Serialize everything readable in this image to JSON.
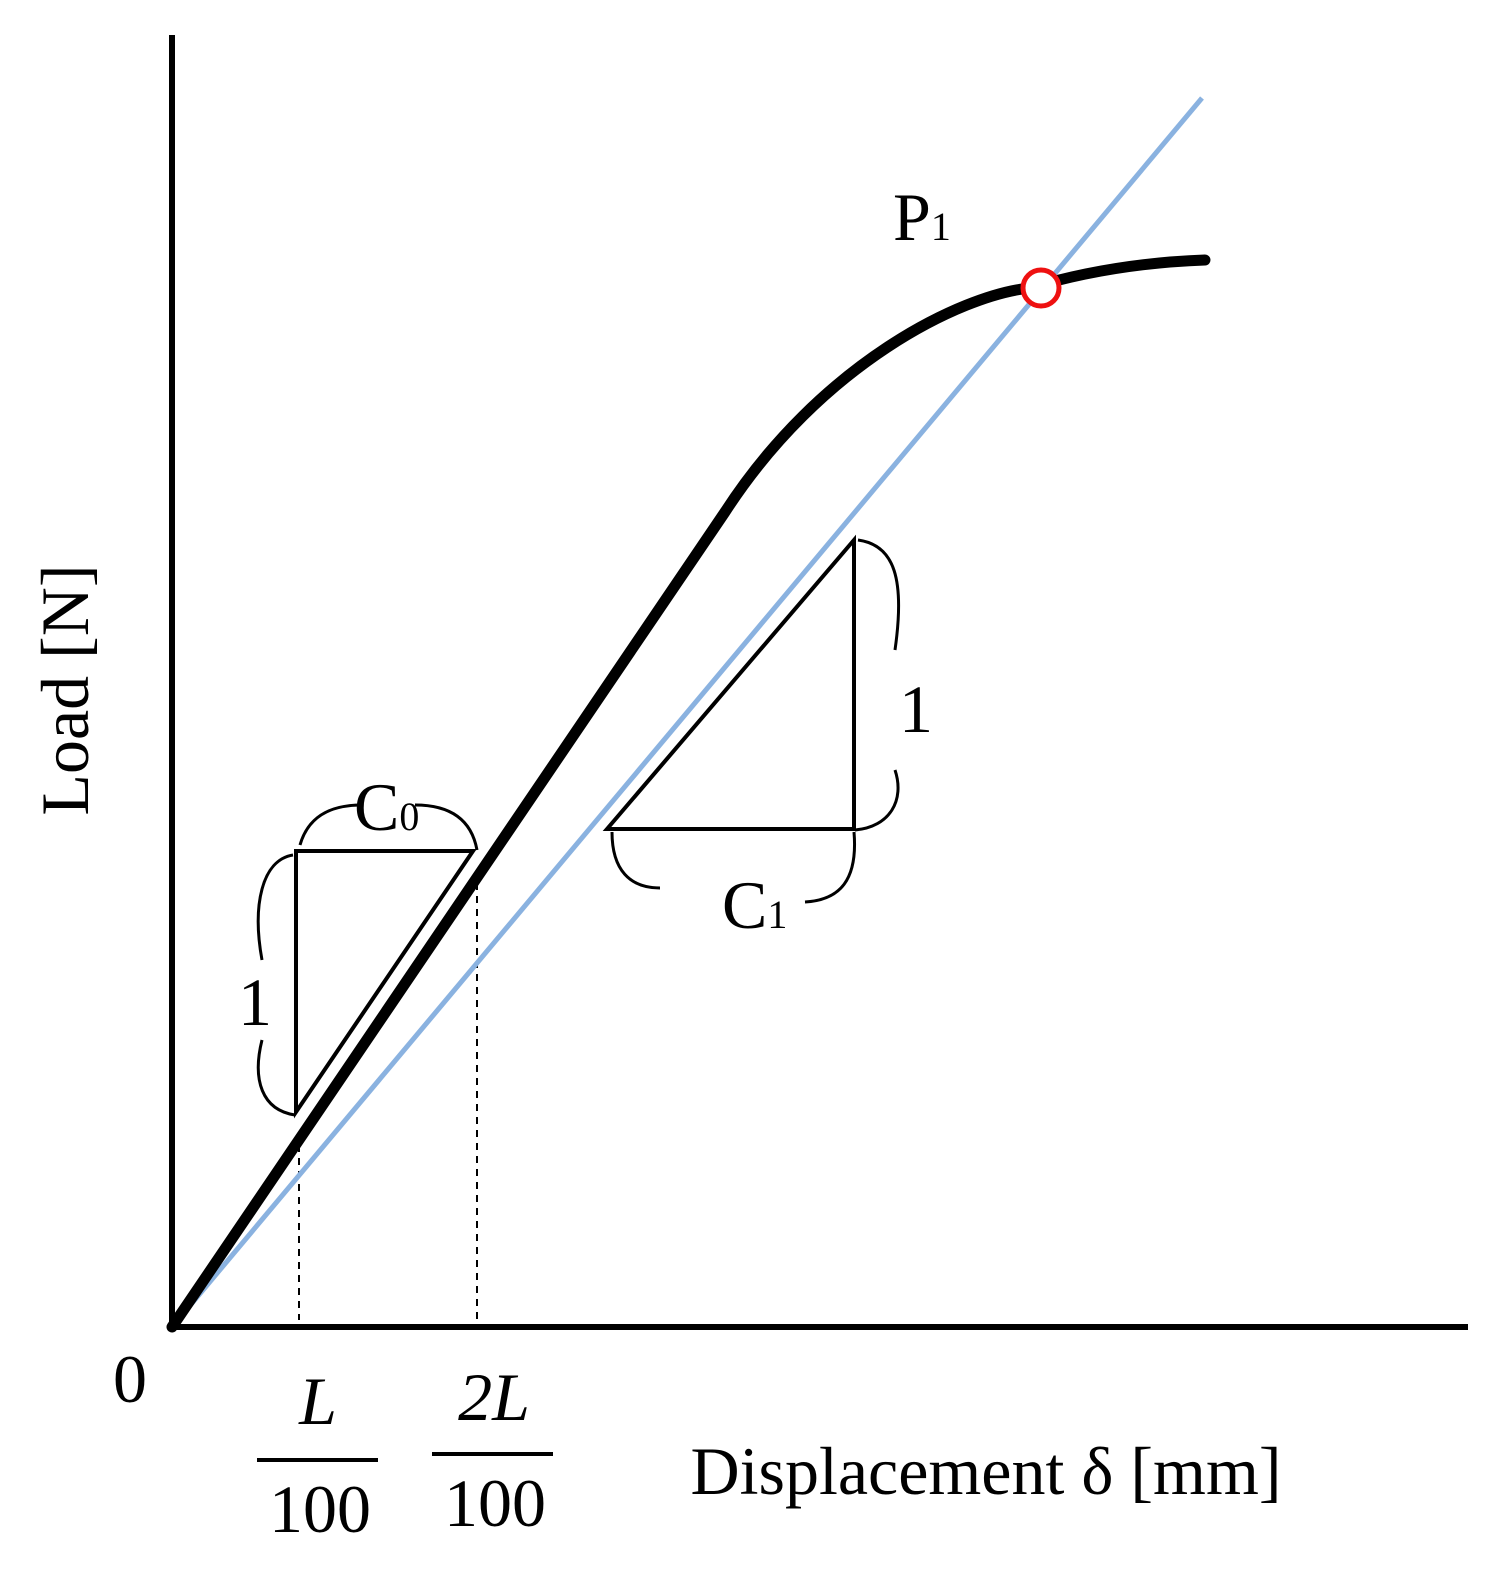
{
  "axes": {
    "y_label": "Load [N]",
    "x_label": "Displacement δ [mm]",
    "origin_label": "0"
  },
  "x_ticks": [
    {
      "numerator": "L",
      "denominator": "100"
    },
    {
      "numerator": "2L",
      "denominator": "100"
    }
  ],
  "curve": {
    "name": "load-displacement-curve",
    "color": "#000000"
  },
  "secant_line": {
    "name": "offset-slope-line",
    "color": "#8ab2e0"
  },
  "point_p1": {
    "main": "P",
    "sub": "1",
    "marker_color": "#ee1111"
  },
  "triangle_c0": {
    "slope_main": "C",
    "slope_sub": "0",
    "rise_label": "1"
  },
  "triangle_c1": {
    "slope_main": "C",
    "slope_sub": "1",
    "rise_label": "1"
  }
}
